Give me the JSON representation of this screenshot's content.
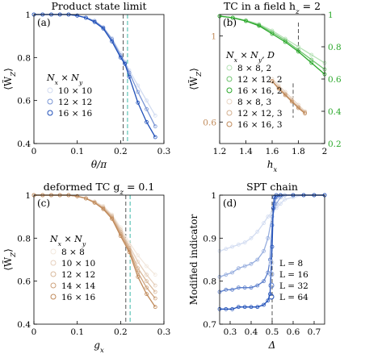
{
  "colors": {
    "blue": "#1f4fb8",
    "green": "#2aa82a",
    "tan": "#c08a5a",
    "axis": "#000000",
    "dash_gray": "#555555",
    "dash_teal": "#3cb8a8"
  },
  "chart_data": [
    {
      "id": "a",
      "type": "line",
      "panel_label": "(a)",
      "title": "Product state limit",
      "xlabel": "θ/π",
      "ylabel": "⟨W̃_Z⟩",
      "xlim": [
        0,
        0.3
      ],
      "ylim": [
        0.4,
        1
      ],
      "xticks": [
        0,
        0.1,
        0.2,
        0.3
      ],
      "xtick_labels": [
        "0",
        "0.1",
        "0.2",
        "0.3"
      ],
      "yticks": [
        0.4,
        0.6,
        0.8,
        1
      ],
      "ytick_labels": [
        "0.4",
        "0.6",
        "0.8",
        "1"
      ],
      "legend_title": "N_x × N_y",
      "vlines": [
        0.206,
        0.216
      ],
      "series": [
        {
          "name": "10 × 10",
          "x": [
            0,
            0.02,
            0.04,
            0.06,
            0.08,
            0.1,
            0.12,
            0.14,
            0.16,
            0.18,
            0.2,
            0.21,
            0.22,
            0.24,
            0.26,
            0.28
          ],
          "y": [
            1,
            1,
            1,
            1,
            1,
            0.995,
            0.985,
            0.97,
            0.94,
            0.89,
            0.82,
            0.78,
            0.74,
            0.67,
            0.6,
            0.53
          ]
        },
        {
          "name": "12 × 12",
          "x": [
            0,
            0.02,
            0.04,
            0.06,
            0.08,
            0.1,
            0.12,
            0.14,
            0.16,
            0.18,
            0.2,
            0.21,
            0.22,
            0.24,
            0.26,
            0.28
          ],
          "y": [
            1,
            1,
            1,
            1,
            1,
            0.995,
            0.985,
            0.97,
            0.94,
            0.885,
            0.81,
            0.775,
            0.73,
            0.64,
            0.56,
            0.48
          ]
        },
        {
          "name": "16 × 16",
          "x": [
            0,
            0.02,
            0.04,
            0.06,
            0.08,
            0.1,
            0.12,
            0.14,
            0.16,
            0.18,
            0.2,
            0.21,
            0.22,
            0.24,
            0.26,
            0.28
          ],
          "y": [
            1,
            1,
            1,
            1,
            1,
            0.995,
            0.985,
            0.965,
            0.935,
            0.875,
            0.8,
            0.77,
            0.71,
            0.59,
            0.5,
            0.43
          ]
        }
      ]
    },
    {
      "id": "b",
      "type": "line",
      "panel_label": "(b)",
      "title": "TC in a field h_z = 2",
      "xlabel": "h_x",
      "ylabel": "⟨W̃_Z⟩",
      "xlim": [
        1.2,
        2
      ],
      "ylim_left": [
        0.5,
        1.1
      ],
      "ylim_right": [
        0.2,
        1
      ],
      "xticks": [
        1.2,
        1.4,
        1.6,
        1.8,
        2
      ],
      "xtick_labels": [
        "1.2",
        "1.4",
        "1.6",
        "1.8",
        "2"
      ],
      "yticks_left": [
        0.6,
        1
      ],
      "ytick_labels_left": [
        "0.6",
        "1"
      ],
      "yticks_right": [
        0.2,
        0.4,
        0.6,
        0.8,
        1
      ],
      "ytick_labels_right": [
        "0.2",
        "0.4",
        "0.6",
        "0.8",
        "1"
      ],
      "legend_title": "N_x × N_y, D",
      "vlines_tan": [
        1.76
      ],
      "vlines_gray": [
        1.8
      ],
      "series": [
        {
          "name": "8 × 8, 2",
          "axis": "right",
          "x": [
            1.2,
            1.3,
            1.4,
            1.5,
            1.6,
            1.7,
            1.8,
            1.9,
            2.0
          ],
          "y": [
            0.99,
            0.98,
            0.965,
            0.94,
            0.9,
            0.85,
            0.8,
            0.75,
            0.7
          ]
        },
        {
          "name": "12 × 12, 2",
          "axis": "right",
          "x": [
            1.2,
            1.3,
            1.4,
            1.5,
            1.6,
            1.7,
            1.8,
            1.9,
            2.0
          ],
          "y": [
            0.99,
            0.98,
            0.96,
            0.935,
            0.89,
            0.84,
            0.78,
            0.72,
            0.66
          ]
        },
        {
          "name": "16 × 16, 2",
          "axis": "right",
          "x": [
            1.2,
            1.3,
            1.4,
            1.5,
            1.6,
            1.7,
            1.8,
            1.9,
            2.0
          ],
          "y": [
            0.99,
            0.98,
            0.96,
            0.93,
            0.88,
            0.83,
            0.77,
            0.7,
            0.63
          ]
        },
        {
          "name": "8 × 8, 3",
          "axis": "left",
          "x": [
            1.6,
            1.65,
            1.7,
            1.75,
            1.8,
            1.85
          ],
          "y": [
            0.8,
            0.77,
            0.74,
            0.71,
            0.68,
            0.65
          ]
        },
        {
          "name": "12 × 12, 3",
          "axis": "left",
          "x": [
            1.6,
            1.65,
            1.7,
            1.75,
            1.8,
            1.85
          ],
          "y": [
            0.79,
            0.76,
            0.73,
            0.7,
            0.67,
            0.645
          ]
        },
        {
          "name": "16 × 16, 3",
          "axis": "left",
          "x": [
            1.6,
            1.65,
            1.7,
            1.75,
            1.8,
            1.85
          ],
          "y": [
            0.79,
            0.755,
            0.725,
            0.695,
            0.665,
            0.64
          ]
        }
      ]
    },
    {
      "id": "c",
      "type": "line",
      "panel_label": "(c)",
      "title": "deformed TC g_z = 0.1",
      "xlabel": "g_x",
      "ylabel": "⟨W̃_Z⟩",
      "xlim": [
        0,
        0.3
      ],
      "ylim": [
        0.4,
        1
      ],
      "xticks": [
        0,
        0.1,
        0.2,
        0.3
      ],
      "xtick_labels": [
        "0",
        "0.1",
        "0.2",
        "0.3"
      ],
      "yticks": [
        0.4,
        0.6,
        0.8,
        1
      ],
      "ytick_labels": [
        "0.4",
        "0.6",
        "0.8",
        "1"
      ],
      "legend_title": "N_x × N_y",
      "vlines": [
        0.212,
        0.222
      ],
      "series": [
        {
          "name": "8 × 8",
          "x": [
            0,
            0.02,
            0.04,
            0.06,
            0.08,
            0.1,
            0.12,
            0.14,
            0.16,
            0.18,
            0.2,
            0.22,
            0.24,
            0.26,
            0.28
          ],
          "y": [
            1,
            1,
            1,
            1,
            1,
            0.995,
            0.985,
            0.97,
            0.95,
            0.91,
            0.85,
            0.78,
            0.72,
            0.67,
            0.63
          ]
        },
        {
          "name": "10 × 10",
          "x": [
            0,
            0.02,
            0.04,
            0.06,
            0.08,
            0.1,
            0.12,
            0.14,
            0.16,
            0.18,
            0.2,
            0.22,
            0.24,
            0.26,
            0.28
          ],
          "y": [
            1,
            1,
            1,
            1,
            1,
            0.995,
            0.985,
            0.97,
            0.945,
            0.905,
            0.84,
            0.765,
            0.69,
            0.63,
            0.58
          ]
        },
        {
          "name": "12 × 12",
          "x": [
            0,
            0.02,
            0.04,
            0.06,
            0.08,
            0.1,
            0.12,
            0.14,
            0.16,
            0.18,
            0.2,
            0.22,
            0.24,
            0.26,
            0.28
          ],
          "y": [
            1,
            1,
            1,
            1,
            1,
            0.995,
            0.985,
            0.965,
            0.94,
            0.9,
            0.83,
            0.755,
            0.66,
            0.6,
            0.55
          ]
        },
        {
          "name": "14 × 14",
          "x": [
            0,
            0.02,
            0.04,
            0.06,
            0.08,
            0.1,
            0.12,
            0.14,
            0.16,
            0.18,
            0.2,
            0.22,
            0.24,
            0.26,
            0.28
          ],
          "y": [
            1,
            1,
            1,
            1,
            1,
            0.995,
            0.985,
            0.965,
            0.94,
            0.895,
            0.82,
            0.745,
            0.64,
            0.57,
            0.52
          ]
        },
        {
          "name": "16 × 16",
          "x": [
            0,
            0.02,
            0.04,
            0.06,
            0.08,
            0.1,
            0.12,
            0.14,
            0.16,
            0.18,
            0.2,
            0.22,
            0.24,
            0.26,
            0.28
          ],
          "y": [
            1,
            1,
            1,
            1,
            1,
            0.995,
            0.985,
            0.965,
            0.935,
            0.89,
            0.81,
            0.735,
            0.62,
            0.54,
            0.48
          ]
        }
      ]
    },
    {
      "id": "d",
      "type": "line",
      "panel_label": "(d)",
      "title": "SPT chain",
      "xlabel": "Δ",
      "ylabel": "Modified indicator",
      "xlim": [
        0.25,
        0.75
      ],
      "ylim": [
        0.7,
        1
      ],
      "xticks": [
        0.3,
        0.4,
        0.5,
        0.6,
        0.7
      ],
      "xtick_labels": [
        "0.3",
        "0.4",
        "0.5",
        "0.6",
        "0.7"
      ],
      "yticks": [
        0.7,
        0.8,
        0.9,
        1
      ],
      "ytick_labels": [
        "0.7",
        "0.8",
        "0.9",
        "1"
      ],
      "vlines": [
        0.5
      ],
      "series": [
        {
          "name": "L = 8",
          "x": [
            0.25,
            0.28,
            0.31,
            0.34,
            0.37,
            0.4,
            0.43,
            0.46,
            0.48,
            0.5,
            0.52,
            0.54,
            0.56,
            0.6,
            0.65,
            0.7,
            0.75
          ],
          "y": [
            0.87,
            0.875,
            0.88,
            0.885,
            0.89,
            0.9,
            0.915,
            0.935,
            0.95,
            0.96,
            0.97,
            0.98,
            0.99,
            0.995,
            1,
            1,
            1
          ]
        },
        {
          "name": "L = 16",
          "x": [
            0.25,
            0.28,
            0.31,
            0.34,
            0.37,
            0.4,
            0.43,
            0.46,
            0.48,
            0.5,
            0.52,
            0.54,
            0.56,
            0.6,
            0.65,
            0.7,
            0.75
          ],
          "y": [
            0.81,
            0.815,
            0.82,
            0.83,
            0.835,
            0.84,
            0.85,
            0.87,
            0.9,
            0.95,
            0.98,
            0.995,
            1,
            1,
            1,
            1,
            1
          ]
        },
        {
          "name": "L = 32",
          "x": [
            0.25,
            0.28,
            0.31,
            0.34,
            0.37,
            0.4,
            0.43,
            0.46,
            0.48,
            0.49,
            0.5,
            0.51,
            0.52,
            0.54,
            0.6,
            0.65,
            0.7,
            0.75
          ],
          "y": [
            0.775,
            0.78,
            0.78,
            0.785,
            0.785,
            0.785,
            0.79,
            0.8,
            0.82,
            0.85,
            0.93,
            0.98,
            0.995,
            1,
            1,
            1,
            1,
            1
          ]
        },
        {
          "name": "L = 64",
          "x": [
            0.25,
            0.28,
            0.31,
            0.34,
            0.37,
            0.4,
            0.43,
            0.46,
            0.48,
            0.49,
            0.5,
            0.505,
            0.51,
            0.52,
            0.54,
            0.6,
            0.65,
            0.7,
            0.75
          ],
          "y": [
            0.735,
            0.735,
            0.735,
            0.74,
            0.74,
            0.74,
            0.74,
            0.745,
            0.755,
            0.77,
            0.88,
            0.97,
            0.995,
            1,
            1,
            1,
            1,
            1,
            1
          ]
        }
      ]
    }
  ]
}
